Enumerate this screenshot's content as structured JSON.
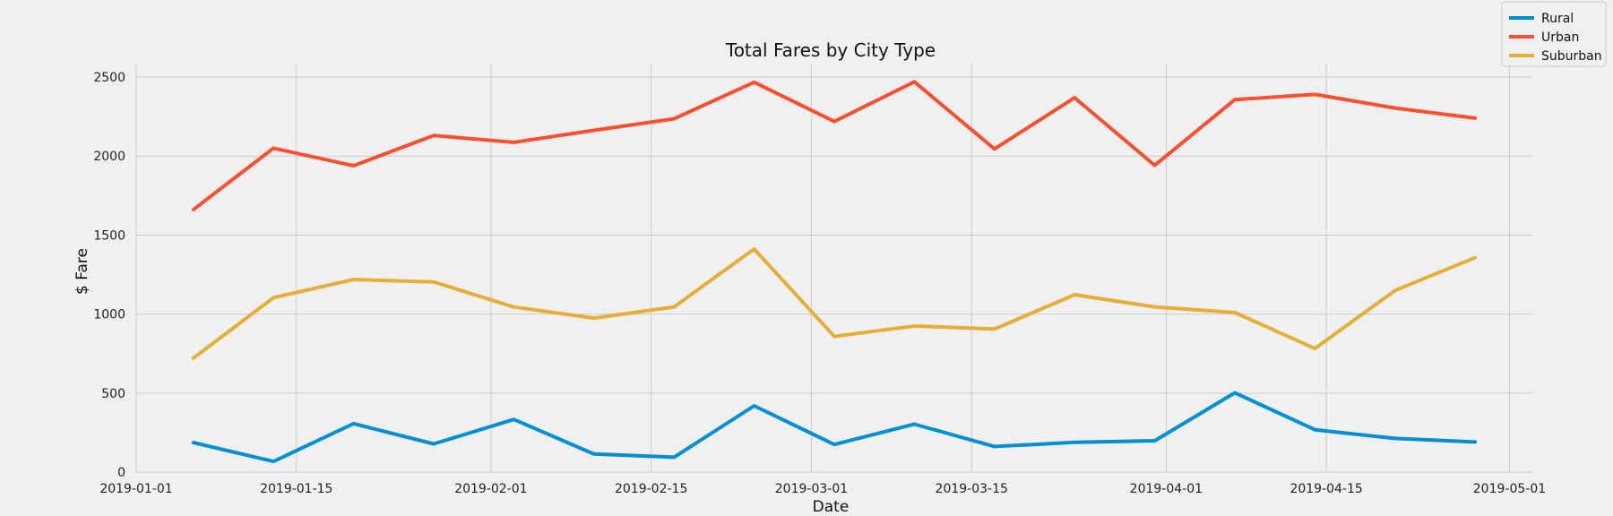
{
  "chart_data": {
    "type": "line",
    "title": "Total Fares by City Type",
    "xlabel": "Date",
    "ylabel": "$ Fare",
    "x": [
      "2019-01-06",
      "2019-01-13",
      "2019-01-20",
      "2019-01-27",
      "2019-02-03",
      "2019-02-10",
      "2019-02-17",
      "2019-02-24",
      "2019-03-03",
      "2019-03-10",
      "2019-03-17",
      "2019-03-24",
      "2019-03-31",
      "2019-04-07",
      "2019-04-14",
      "2019-04-21",
      "2019-04-28"
    ],
    "x_ticks": [
      "2019-01-01",
      "2019-01-15",
      "2019-02-01",
      "2019-02-15",
      "2019-03-01",
      "2019-03-15",
      "2019-04-01",
      "2019-04-15",
      "2019-05-01"
    ],
    "xlim": [
      "2019-01-01",
      "2019-05-03"
    ],
    "y_ticks": [
      0,
      500,
      1000,
      1500,
      2000,
      2500
    ],
    "ylim": [
      -5,
      2585
    ],
    "grid": true,
    "legend_position": "top-right",
    "series": [
      {
        "name": "Rural",
        "color": "#008fd5",
        "values": [
          187,
          68,
          307,
          179,
          334,
          115,
          95,
          420,
          175,
          304,
          163,
          189,
          199,
          502,
          269,
          214,
          191
        ]
      },
      {
        "name": "Urban",
        "color": "#fc4f30",
        "values": [
          1662,
          2050,
          1939,
          2130,
          2087,
          2163,
          2236,
          2467,
          2219,
          2470,
          2045,
          2369,
          1941,
          2357,
          2390,
          2304,
          2240
        ]
      },
      {
        "name": "Suburban",
        "color": "#e5ae38",
        "values": [
          722,
          1104,
          1219,
          1204,
          1045,
          975,
          1046,
          1412,
          859,
          925,
          906,
          1123,
          1046,
          1010,
          783,
          1150,
          1357
        ]
      }
    ]
  }
}
